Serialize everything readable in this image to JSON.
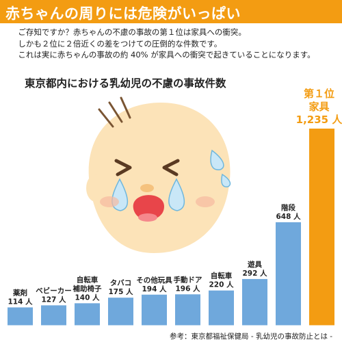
{
  "header": {
    "title": "赤ちゃんの周りには危険がいっぱい"
  },
  "intro": {
    "lines": [
      "ご存知ですか？赤ちゃんの不慮の事故の第１位は家具への衝突。",
      "しかも２位に２倍近くの差をつけての圧倒的な件数です。",
      "これは実に赤ちゃんの事故の約 40% が家具への衝突で起きていることになります。"
    ]
  },
  "footer": {
    "source": "参考：東京都福祉保健局 - 乳幼児の事故防止とは -"
  },
  "colors": {
    "banner": "#f39c12",
    "bar": "#6fa8dc",
    "top_bar": "#f39c12"
  },
  "illustration": {
    "icon": "crying-baby-icon"
  },
  "chart_data": {
    "type": "bar",
    "title": "東京都内における乳幼児の不慮の事故件数",
    "categories": [
      {
        "label": [
          "薬剤"
        ],
        "value_label": "114 人"
      },
      {
        "label": [
          "ベビーカー"
        ],
        "value_label": "127 人"
      },
      {
        "label": [
          "自転車",
          "補助椅子"
        ],
        "value_label": "140 人"
      },
      {
        "label": [
          "タバコ"
        ],
        "value_label": "175 人"
      },
      {
        "label": [
          "その他玩具"
        ],
        "value_label": "194 人"
      },
      {
        "label": [
          "手動ドア"
        ],
        "value_label": "196 人"
      },
      {
        "label": [
          "自転車"
        ],
        "value_label": "220 人"
      },
      {
        "label": [
          "遊具"
        ],
        "value_label": "292 人"
      },
      {
        "label": [
          "階段"
        ],
        "value_label": "648 人"
      },
      {
        "label": [
          "第１位",
          "家具",
          "1,235 人"
        ],
        "value_label": "",
        "highlight": true
      }
    ],
    "values": [
      114,
      127,
      140,
      175,
      194,
      196,
      220,
      292,
      648,
      1235
    ],
    "unit": "人",
    "ylim": [
      0,
      1235
    ],
    "grid": false,
    "legend": "none"
  }
}
